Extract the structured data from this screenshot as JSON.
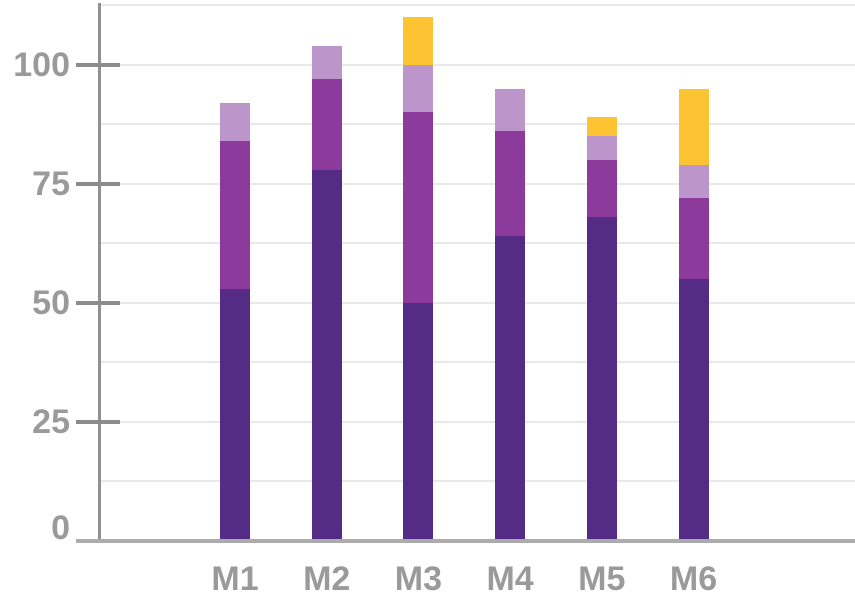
{
  "chart_data": {
    "type": "bar",
    "stacked": true,
    "title": "",
    "xlabel": "",
    "ylabel": "",
    "categories": [
      "M1",
      "M2",
      "M3",
      "M4",
      "M5",
      "M6"
    ],
    "series": [
      {
        "name": "segment-dark-purple",
        "color": "#542C85",
        "values": [
          53,
          78,
          50,
          64,
          68,
          55
        ]
      },
      {
        "name": "segment-medium-purple",
        "color": "#8C3A9C",
        "values": [
          31,
          19,
          40,
          22,
          12,
          17
        ]
      },
      {
        "name": "segment-lavender",
        "color": "#BC96CB",
        "values": [
          8,
          7,
          10,
          9,
          5,
          7
        ]
      },
      {
        "name": "segment-yellow",
        "color": "#FCC433",
        "values": [
          0,
          0,
          10,
          0,
          4,
          16
        ]
      }
    ],
    "totals": [
      92,
      104,
      110,
      95,
      89,
      95
    ],
    "y_ticks": [
      0,
      25,
      50,
      75,
      100
    ],
    "ylim": [
      0,
      112.5
    ],
    "gridline_step": 12.5,
    "grid": true,
    "legend": "none",
    "colors": {
      "label_gray": "#9A9A9A",
      "tick_gray": "#8C8C8C",
      "axis_gray": "#919191",
      "baseline_gray": "#ACACAC",
      "gridline_gray": "#E9E9E9",
      "background": "#FFFFFF"
    }
  }
}
